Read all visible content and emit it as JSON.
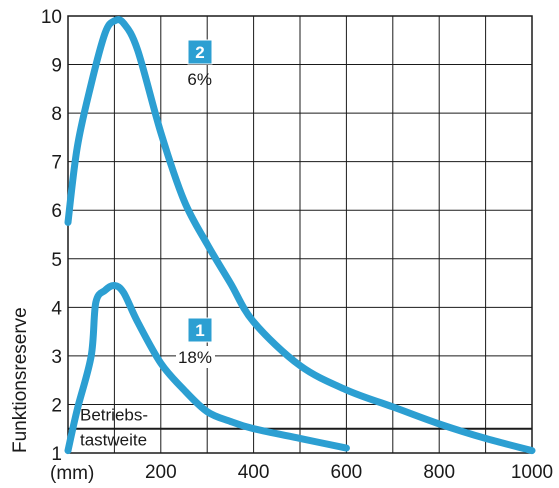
{
  "chart_data": {
    "type": "line",
    "ylabel": "Funktionsreserve",
    "x_unit_label": "(mm)",
    "xlim": [
      0,
      1000
    ],
    "ylim": [
      1,
      10
    ],
    "x_ticks": [
      {
        "value": 200,
        "label": "200"
      },
      {
        "value": 400,
        "label": "400"
      },
      {
        "value": 600,
        "label": "600"
      },
      {
        "value": 800,
        "label": "800"
      },
      {
        "value": 1000,
        "label": "1000"
      }
    ],
    "y_ticks": [
      {
        "value": 1,
        "label": "1"
      },
      {
        "value": 2,
        "label": "2"
      },
      {
        "value": 3,
        "label": "3"
      },
      {
        "value": 4,
        "label": "4"
      },
      {
        "value": 5,
        "label": "5"
      },
      {
        "value": 6,
        "label": "6"
      },
      {
        "value": 7,
        "label": "7"
      },
      {
        "value": 8,
        "label": "8"
      },
      {
        "value": 9,
        "label": "9"
      },
      {
        "value": 10,
        "label": "10"
      }
    ],
    "grid": true,
    "grid_x_step": 100,
    "grid_y_step": 1,
    "series": [
      {
        "badge": "1",
        "label": "18%",
        "color": "#2c9fd2",
        "x": [
          0,
          20,
          50,
          60,
          80,
          100,
          120,
          150,
          200,
          250,
          300,
          350,
          400,
          500,
          600
        ],
        "y": [
          1.05,
          1.9,
          3.0,
          4.1,
          4.35,
          4.45,
          4.3,
          3.7,
          2.85,
          2.3,
          1.85,
          1.65,
          1.5,
          1.3,
          1.1
        ]
      },
      {
        "badge": "2",
        "label": "6%",
        "color": "#2c9fd2",
        "x": [
          0,
          20,
          50,
          80,
          100,
          120,
          150,
          200,
          250,
          300,
          350,
          400,
          500,
          600,
          700,
          800,
          900,
          1000
        ],
        "y": [
          5.75,
          7.3,
          8.6,
          9.65,
          9.9,
          9.85,
          9.3,
          7.6,
          6.2,
          5.3,
          4.5,
          3.7,
          2.8,
          2.3,
          1.95,
          1.6,
          1.3,
          1.05
        ]
      }
    ],
    "reference_line": {
      "y": 1.5,
      "label_line1": "Betriebs-",
      "label_line2": "tastweite",
      "color": "#1a1a1a"
    }
  }
}
